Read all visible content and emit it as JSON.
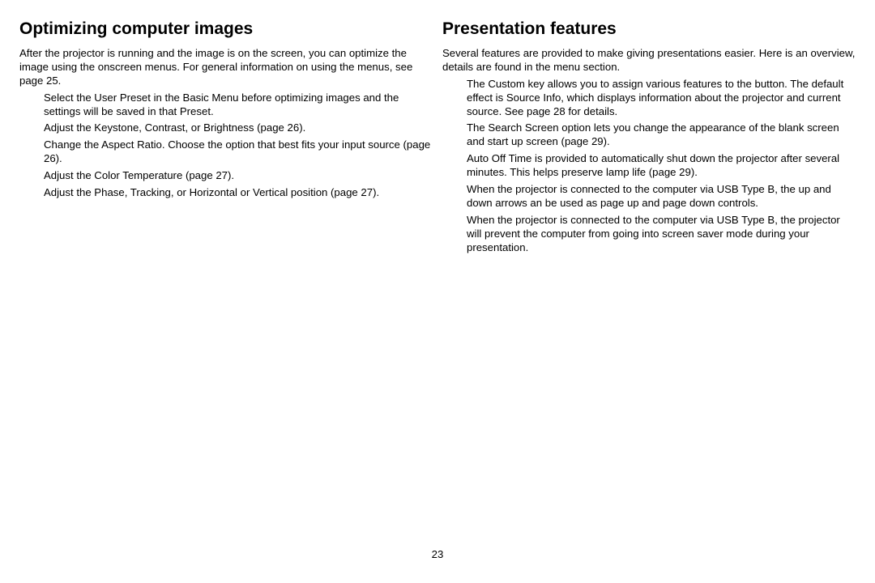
{
  "left": {
    "heading": "Optimizing computer images",
    "intro": "After the projector is running and the image is on the screen, you can optimize the image using the onscreen menus. For general information on using the menus, see page 25.",
    "items": [
      "Select the User Preset in the Basic Menu before optimizing images and the settings will be saved in that Preset.",
      "Adjust the Keystone, Contrast, or Brightness (page 26).",
      "Change the Aspect Ratio. Choose the option that best fits your input source (page 26).",
      "Adjust the Color Temperature (page 27).",
      "Adjust the Phase, Tracking, or Horizontal or Vertical position (page 27)."
    ]
  },
  "right": {
    "heading": "Presentation features",
    "intro": "Several features are provided to make giving presentations easier. Here is an overview, details are found in the menu section.",
    "items": [
      "The Custom key allows you to assign various features to the button. The default effect is Source Info, which displays information about the projector and current source. See page 28 for details.",
      "The Search Screen option lets you change the appearance of the blank screen and start up screen (page 29).",
      "Auto Off Time is provided to automatically shut down the projector after several minutes. This helps preserve lamp life (page 29).",
      "When the projector is connected to the computer via USB Type B, the up and down arrows an be used as page up and page down controls.",
      "When the projector is connected to the computer via USB Type B, the projector will prevent the computer from going into screen saver mode during your presentation."
    ]
  },
  "pageNumber": "23"
}
